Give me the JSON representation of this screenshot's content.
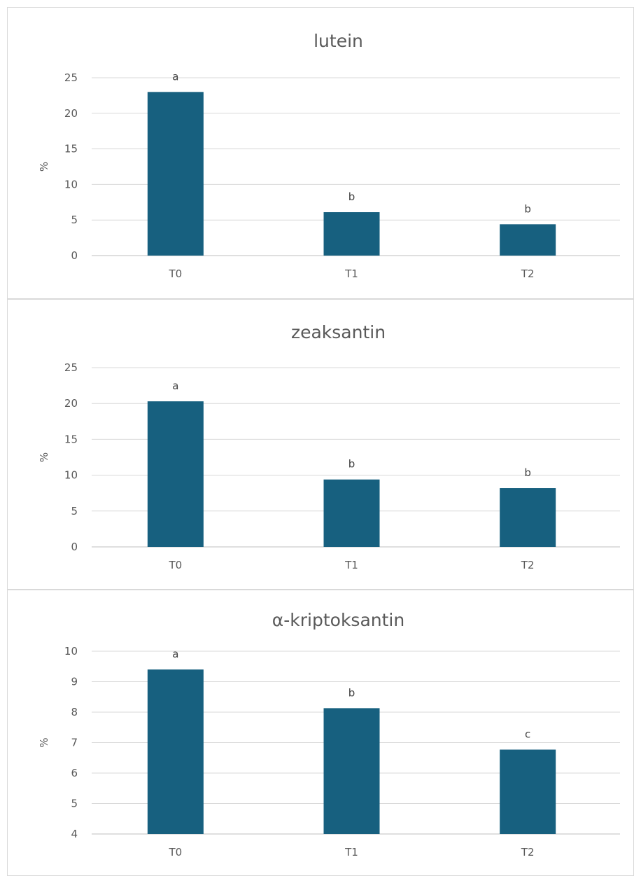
{
  "chart_data": [
    {
      "type": "bar",
      "title": "lutein",
      "ylabel": "%",
      "categories": [
        "T0",
        "T1",
        "T2"
      ],
      "values": [
        23.0,
        6.1,
        4.4
      ],
      "labels": [
        "a",
        "b",
        "b"
      ],
      "ylim": [
        0,
        25
      ],
      "yticks": [
        0,
        5,
        10,
        15,
        20,
        25
      ],
      "grid": true,
      "color": "#17607f"
    },
    {
      "type": "bar",
      "title": "zeaksantin",
      "ylabel": "%",
      "categories": [
        "T0",
        "T1",
        "T2"
      ],
      "values": [
        20.3,
        9.4,
        8.2
      ],
      "labels": [
        "a",
        "b",
        "b"
      ],
      "ylim": [
        0,
        25
      ],
      "yticks": [
        0,
        5,
        10,
        15,
        20,
        25
      ],
      "grid": true,
      "color": "#17607f"
    },
    {
      "type": "bar",
      "title": "α-kriptoksantin",
      "ylabel": "%",
      "categories": [
        "T0",
        "T1",
        "T2"
      ],
      "values": [
        9.4,
        8.13,
        6.77
      ],
      "labels": [
        "a",
        "b",
        "c"
      ],
      "ylim": [
        4,
        10
      ],
      "yticks": [
        4,
        5,
        6,
        7,
        8,
        9,
        10
      ],
      "grid": true,
      "color": "#17607f"
    }
  ]
}
